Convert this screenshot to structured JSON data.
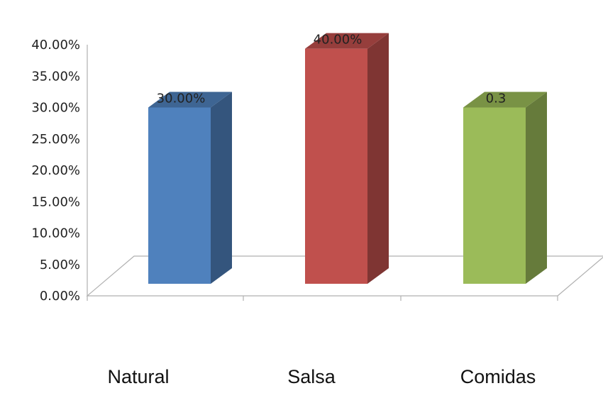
{
  "chart_data": {
    "type": "bar",
    "title": "",
    "xlabel": "",
    "ylabel": "",
    "categories": [
      "Natural",
      "Salsa",
      "Comidas"
    ],
    "values": [
      0.3,
      0.4,
      0.3
    ],
    "data_labels": [
      "30.00%",
      "40.00%",
      "0.3"
    ],
    "ylim": [
      0,
      0.4
    ],
    "y_ticks": [
      0,
      0.05,
      0.1,
      0.15,
      0.2,
      0.25,
      0.3,
      0.35,
      0.4
    ],
    "y_tick_labels": [
      "0.00%",
      "5.00%",
      "10.00%",
      "15.00%",
      "20.00%",
      "25.00%",
      "30.00%",
      "35.00%",
      "40.00%"
    ],
    "colors": [
      "#4F81BD",
      "#C0504D",
      "#9BBB59"
    ],
    "style": "3d-column",
    "grid": false,
    "legend": "none"
  }
}
